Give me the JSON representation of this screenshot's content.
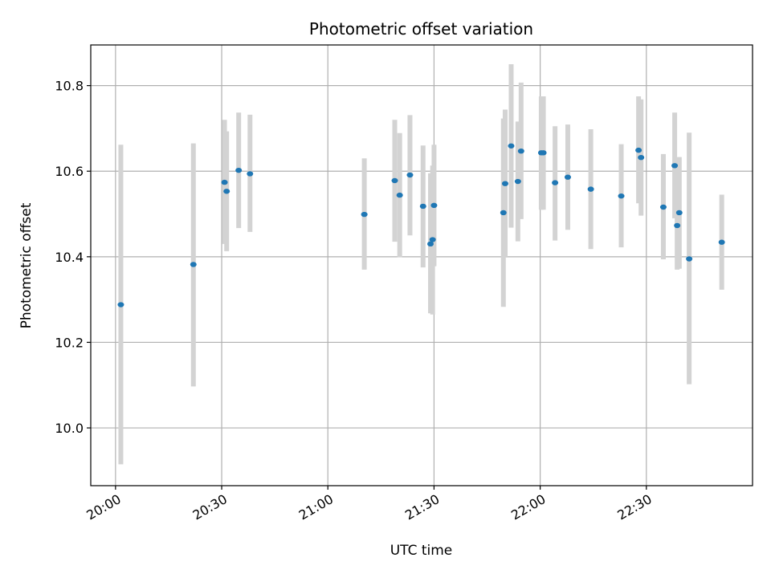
{
  "chart_data": {
    "type": "scatter",
    "title": "Photometric offset variation",
    "xlabel": "UTC time",
    "ylabel": "Photometric offset",
    "grid": true,
    "xlim_minutes": [
      -7,
      180
    ],
    "ylim": [
      9.865,
      10.895
    ],
    "x_ticks": [
      {
        "minutes": 0,
        "label": "20:00"
      },
      {
        "minutes": 30,
        "label": "20:30"
      },
      {
        "minutes": 60,
        "label": "21:00"
      },
      {
        "minutes": 90,
        "label": "21:30"
      },
      {
        "minutes": 120,
        "label": "22:00"
      },
      {
        "minutes": 150,
        "label": "22:30"
      }
    ],
    "y_ticks": [
      {
        "value": 10.0,
        "label": "10.0"
      },
      {
        "value": 10.2,
        "label": "10.2"
      },
      {
        "value": 10.4,
        "label": "10.4"
      },
      {
        "value": 10.6,
        "label": "10.6"
      },
      {
        "value": 10.8,
        "label": "10.8"
      }
    ],
    "colors": {
      "marker": "#1f77b4",
      "errorbar": "#d3d3d3",
      "grid": "#b0b0b0",
      "axis": "#000000"
    },
    "series": [
      {
        "name": "offset",
        "points": [
          {
            "t": 1.5,
            "y": 10.288,
            "lo": 9.915,
            "hi": 10.662
          },
          {
            "t": 22.0,
            "y": 10.382,
            "lo": 10.097,
            "hi": 10.665
          },
          {
            "t": 30.8,
            "y": 10.574,
            "lo": 10.43,
            "hi": 10.72
          },
          {
            "t": 31.4,
            "y": 10.553,
            "lo": 10.413,
            "hi": 10.693
          },
          {
            "t": 34.8,
            "y": 10.602,
            "lo": 10.467,
            "hi": 10.737
          },
          {
            "t": 38.0,
            "y": 10.594,
            "lo": 10.458,
            "hi": 10.732
          },
          {
            "t": 70.3,
            "y": 10.499,
            "lo": 10.37,
            "hi": 10.63
          },
          {
            "t": 78.9,
            "y": 10.578,
            "lo": 10.435,
            "hi": 10.72
          },
          {
            "t": 80.3,
            "y": 10.544,
            "lo": 10.399,
            "hi": 10.689
          },
          {
            "t": 83.2,
            "y": 10.591,
            "lo": 10.45,
            "hi": 10.731
          },
          {
            "t": 86.9,
            "y": 10.518,
            "lo": 10.375,
            "hi": 10.66
          },
          {
            "t": 89.0,
            "y": 10.43,
            "lo": 10.268,
            "hi": 10.595
          },
          {
            "t": 89.6,
            "y": 10.44,
            "lo": 10.265,
            "hi": 10.613
          },
          {
            "t": 90.0,
            "y": 10.52,
            "lo": 10.378,
            "hi": 10.662
          },
          {
            "t": 109.6,
            "y": 10.503,
            "lo": 10.283,
            "hi": 10.723
          },
          {
            "t": 110.1,
            "y": 10.571,
            "lo": 10.4,
            "hi": 10.744
          },
          {
            "t": 111.8,
            "y": 10.659,
            "lo": 10.468,
            "hi": 10.85
          },
          {
            "t": 113.7,
            "y": 10.576,
            "lo": 10.436,
            "hi": 10.716
          },
          {
            "t": 114.6,
            "y": 10.647,
            "lo": 10.488,
            "hi": 10.807
          },
          {
            "t": 120.3,
            "y": 10.643,
            "lo": 10.51,
            "hi": 10.775
          },
          {
            "t": 120.9,
            "y": 10.643,
            "lo": 10.51,
            "hi": 10.775
          },
          {
            "t": 124.2,
            "y": 10.573,
            "lo": 10.438,
            "hi": 10.705
          },
          {
            "t": 127.8,
            "y": 10.586,
            "lo": 10.463,
            "hi": 10.709
          },
          {
            "t": 134.3,
            "y": 10.558,
            "lo": 10.418,
            "hi": 10.698
          },
          {
            "t": 142.9,
            "y": 10.542,
            "lo": 10.422,
            "hi": 10.663
          },
          {
            "t": 147.8,
            "y": 10.649,
            "lo": 10.525,
            "hi": 10.775
          },
          {
            "t": 148.5,
            "y": 10.632,
            "lo": 10.496,
            "hi": 10.768
          },
          {
            "t": 154.8,
            "y": 10.516,
            "lo": 10.394,
            "hi": 10.64
          },
          {
            "t": 158.0,
            "y": 10.613,
            "lo": 10.49,
            "hi": 10.737
          },
          {
            "t": 158.7,
            "y": 10.473,
            "lo": 10.37,
            "hi": 10.58
          },
          {
            "t": 159.3,
            "y": 10.503,
            "lo": 10.372,
            "hi": 10.633
          },
          {
            "t": 162.1,
            "y": 10.395,
            "lo": 10.102,
            "hi": 10.69
          },
          {
            "t": 171.3,
            "y": 10.434,
            "lo": 10.323,
            "hi": 10.545
          }
        ]
      }
    ]
  }
}
